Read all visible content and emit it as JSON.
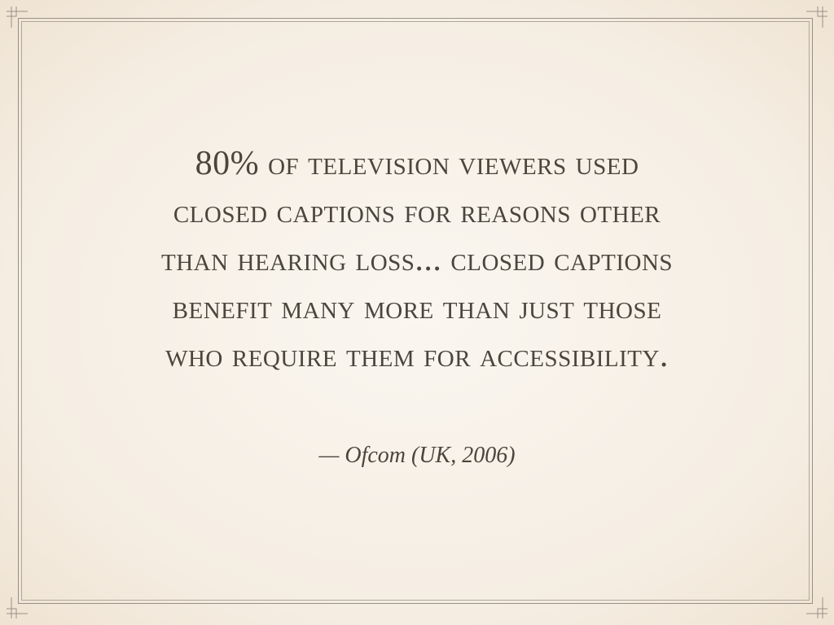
{
  "quote": {
    "lines": [
      "80% of television viewers used",
      "closed captions for reasons other",
      "than hearing loss... closed captions",
      "benefit many more than just those",
      "who require them for accessibility."
    ],
    "attribution": "— Ofcom (UK, 2006)"
  }
}
